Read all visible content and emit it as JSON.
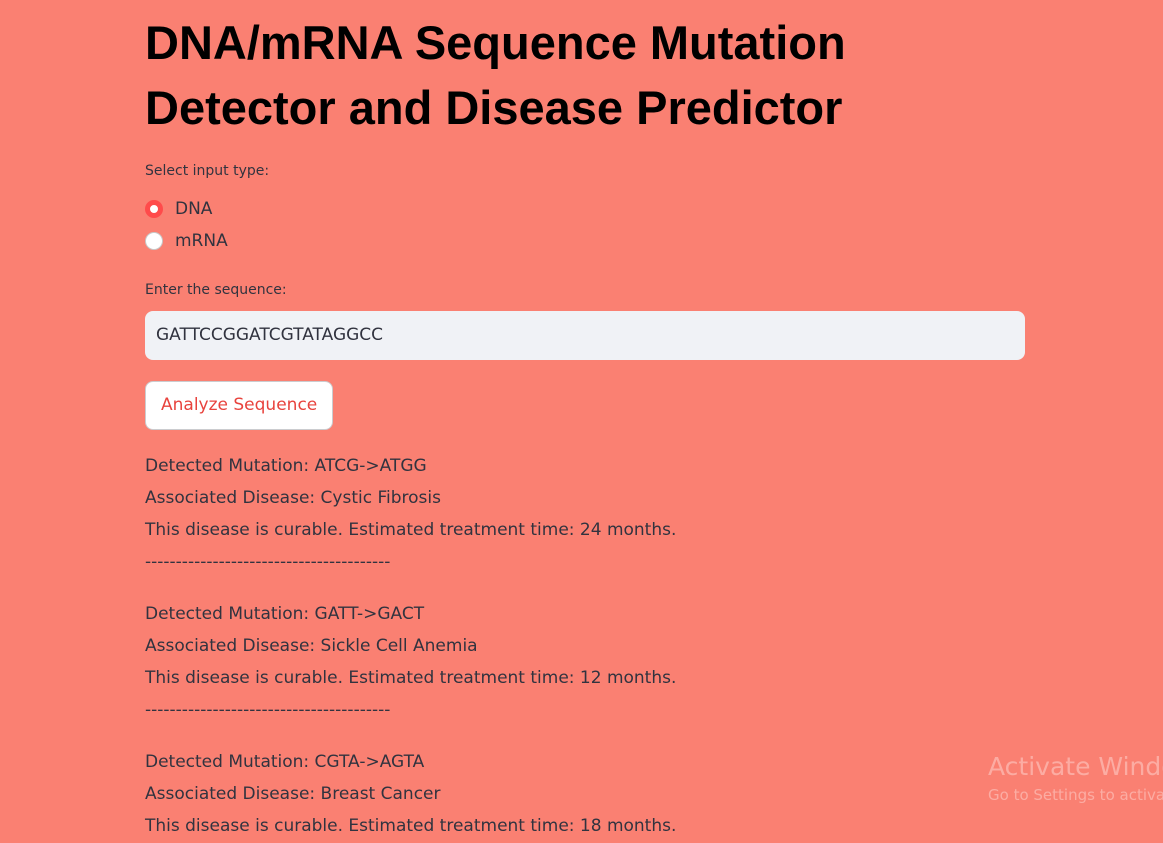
{
  "title": "DNA/mRNA Sequence Mutation Detector and Disease Predictor",
  "input_type": {
    "label": "Select input type:",
    "options": [
      "DNA",
      "mRNA"
    ]
  },
  "sequence": {
    "label": "Enter the sequence:",
    "value": "GATTCCGGATCGTATAGGCC"
  },
  "button": "Analyze Sequence",
  "results": [
    {
      "mutation": "Detected Mutation: ATCG->ATGG",
      "disease": "Associated Disease: Cystic Fibrosis",
      "treatment": "This disease is curable. Estimated treatment time: 24 months.",
      "divider": "----------------------------------------"
    },
    {
      "mutation": "Detected Mutation: GATT->GACT",
      "disease": "Associated Disease: Sickle Cell Anemia",
      "treatment": "This disease is curable. Estimated treatment time: 12 months.",
      "divider": "----------------------------------------"
    },
    {
      "mutation": "Detected Mutation: CGTA->AGTA",
      "disease": "Associated Disease: Breast Cancer",
      "treatment": "This disease is curable. Estimated treatment time: 18 months."
    }
  ],
  "watermark": {
    "title": "Activate Windows",
    "subtitle": "Go to Settings to activate Windows."
  }
}
